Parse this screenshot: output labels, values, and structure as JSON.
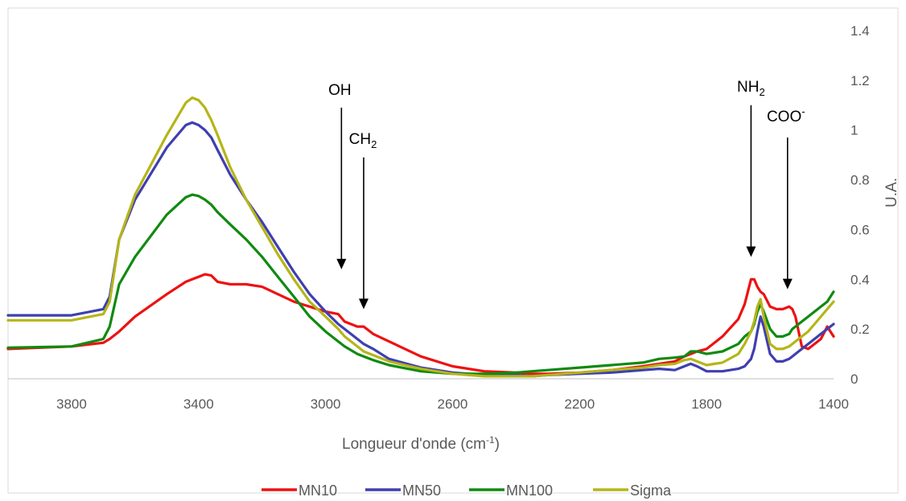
{
  "chart_data": {
    "type": "line",
    "xlabel_main": "Longueur d'onde (cm",
    "xlabel_sup": "-1",
    "xlabel_end": ")",
    "ylabel": "U.A.",
    "xlim": [
      4000,
      1400
    ],
    "x_reversed": true,
    "ylim": [
      0,
      1.4
    ],
    "x_ticks": [
      "3800",
      "3400",
      "3000",
      "2600",
      "2200",
      "1800",
      "1400"
    ],
    "y_ticks": [
      "0",
      "0.2",
      "0.4",
      "0.6",
      "0.8",
      "1",
      "1.2",
      "1.4"
    ],
    "y_axis_side": "right",
    "grid": false,
    "legend_position": "bottom",
    "annotations": [
      {
        "label": "OH",
        "sub": "",
        "sup": "",
        "x": 2950,
        "arrow_top": 1.09,
        "arrow_bottom": 0.44
      },
      {
        "label": "CH",
        "sub": "2",
        "sup": "",
        "x": 2880,
        "arrow_top": 0.89,
        "arrow_bottom": 0.28
      },
      {
        "label": "NH",
        "sub": "2",
        "sup": "",
        "x": 1660,
        "arrow_top": 1.1,
        "arrow_bottom": 0.49
      },
      {
        "label": "COO",
        "sub": "",
        "sup": "-",
        "x": 1545,
        "arrow_top": 0.97,
        "arrow_bottom": 0.36
      }
    ],
    "x": [
      4000,
      3800,
      3700,
      3680,
      3650,
      3600,
      3500,
      3440,
      3420,
      3400,
      3380,
      3360,
      3340,
      3300,
      3250,
      3200,
      3150,
      3100,
      3050,
      3000,
      2960,
      2940,
      2900,
      2880,
      2850,
      2800,
      2700,
      2600,
      2500,
      2400,
      2350,
      2300,
      2200,
      2100,
      2000,
      1950,
      1900,
      1870,
      1850,
      1830,
      1800,
      1750,
      1700,
      1680,
      1660,
      1650,
      1640,
      1630,
      1620,
      1600,
      1580,
      1560,
      1540,
      1530,
      1520,
      1500,
      1480,
      1460,
      1440,
      1420,
      1400
    ],
    "series": [
      {
        "name": "MN10",
        "color": "#ee1111",
        "values": [
          0.12,
          0.13,
          0.145,
          0.16,
          0.19,
          0.25,
          0.34,
          0.39,
          0.4,
          0.41,
          0.42,
          0.415,
          0.39,
          0.38,
          0.38,
          0.37,
          0.34,
          0.31,
          0.29,
          0.27,
          0.26,
          0.23,
          0.21,
          0.21,
          0.18,
          0.15,
          0.09,
          0.05,
          0.03,
          0.025,
          0.02,
          0.02,
          0.025,
          0.035,
          0.05,
          0.06,
          0.07,
          0.09,
          0.1,
          0.11,
          0.12,
          0.17,
          0.24,
          0.3,
          0.4,
          0.4,
          0.37,
          0.35,
          0.34,
          0.29,
          0.28,
          0.28,
          0.29,
          0.28,
          0.25,
          0.13,
          0.12,
          0.14,
          0.16,
          0.21,
          0.17
        ]
      },
      {
        "name": "MN50",
        "color": "#3f3fb0",
        "values": [
          0.255,
          0.255,
          0.28,
          0.33,
          0.56,
          0.72,
          0.93,
          1.02,
          1.03,
          1.02,
          1.0,
          0.97,
          0.92,
          0.82,
          0.72,
          0.63,
          0.53,
          0.43,
          0.34,
          0.27,
          0.22,
          0.2,
          0.16,
          0.14,
          0.12,
          0.08,
          0.045,
          0.025,
          0.015,
          0.015,
          0.01,
          0.015,
          0.02,
          0.025,
          0.035,
          0.04,
          0.035,
          0.05,
          0.06,
          0.05,
          0.03,
          0.03,
          0.04,
          0.05,
          0.08,
          0.12,
          0.19,
          0.25,
          0.21,
          0.1,
          0.07,
          0.07,
          0.08,
          0.09,
          0.1,
          0.12,
          0.14,
          0.16,
          0.18,
          0.2,
          0.22
        ]
      },
      {
        "name": "MN100",
        "color": "#108a10",
        "values": [
          0.125,
          0.13,
          0.16,
          0.21,
          0.38,
          0.49,
          0.66,
          0.73,
          0.74,
          0.735,
          0.72,
          0.7,
          0.67,
          0.62,
          0.56,
          0.49,
          0.41,
          0.33,
          0.25,
          0.19,
          0.15,
          0.13,
          0.1,
          0.09,
          0.075,
          0.055,
          0.03,
          0.02,
          0.02,
          0.025,
          0.03,
          0.035,
          0.045,
          0.055,
          0.065,
          0.08,
          0.085,
          0.09,
          0.11,
          0.11,
          0.1,
          0.11,
          0.14,
          0.17,
          0.19,
          0.22,
          0.27,
          0.3,
          0.27,
          0.2,
          0.17,
          0.17,
          0.18,
          0.2,
          0.21,
          0.23,
          0.25,
          0.27,
          0.29,
          0.31,
          0.35
        ]
      },
      {
        "name": "Sigma",
        "color": "#b5b51a",
        "values": [
          0.235,
          0.235,
          0.26,
          0.31,
          0.56,
          0.74,
          0.98,
          1.11,
          1.13,
          1.12,
          1.09,
          1.04,
          0.98,
          0.85,
          0.72,
          0.61,
          0.5,
          0.4,
          0.31,
          0.25,
          0.2,
          0.17,
          0.13,
          0.11,
          0.095,
          0.07,
          0.04,
          0.02,
          0.01,
          0.01,
          0.01,
          0.015,
          0.025,
          0.035,
          0.045,
          0.055,
          0.06,
          0.075,
          0.08,
          0.07,
          0.055,
          0.065,
          0.1,
          0.14,
          0.19,
          0.23,
          0.29,
          0.32,
          0.25,
          0.14,
          0.12,
          0.12,
          0.13,
          0.14,
          0.15,
          0.17,
          0.19,
          0.22,
          0.25,
          0.28,
          0.31
        ]
      }
    ]
  }
}
